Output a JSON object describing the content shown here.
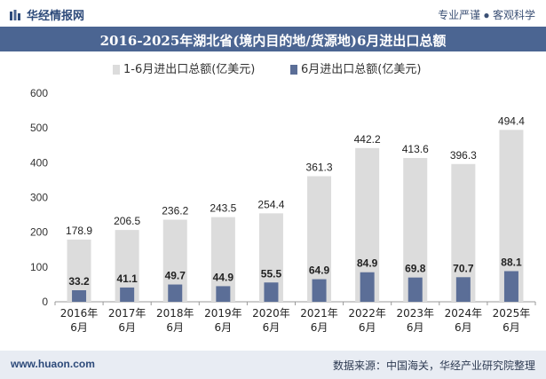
{
  "header": {
    "brand": "华经情报网",
    "tagline": "专业严谨 ● 客观科学"
  },
  "chart_data": {
    "type": "bar",
    "title": "2016-2025年湖北省(境内目的地/货源地)6月进出口总额",
    "categories": [
      "2016年\n6月",
      "2017年\n6月",
      "2018年\n6月",
      "2019年\n6月",
      "2020年\n6月",
      "2021年\n6月",
      "2022年\n6月",
      "2023年\n6月",
      "2024年\n6月",
      "2025年\n6月"
    ],
    "series": [
      {
        "name": "1-6月进出口总额(亿美元)",
        "color": "#dcdcdc",
        "values": [
          178.9,
          206.5,
          236.2,
          243.5,
          254.4,
          361.3,
          442.2,
          413.6,
          396.3,
          494.4
        ]
      },
      {
        "name": "6月进出口总额(亿美元)",
        "color": "#5b6e97",
        "values": [
          33.2,
          41.1,
          49.7,
          44.9,
          55.5,
          64.9,
          84.9,
          69.8,
          70.7,
          88.1
        ]
      }
    ],
    "ylim": [
      0,
      600
    ],
    "yticks": [
      0,
      100,
      200,
      300,
      400,
      500,
      600
    ],
    "legend_position": "top",
    "grid": false,
    "overlap": true
  },
  "footer": {
    "site": "www.huaon.com",
    "source": "数据来源：中国海关，华经产业研究院整理"
  }
}
